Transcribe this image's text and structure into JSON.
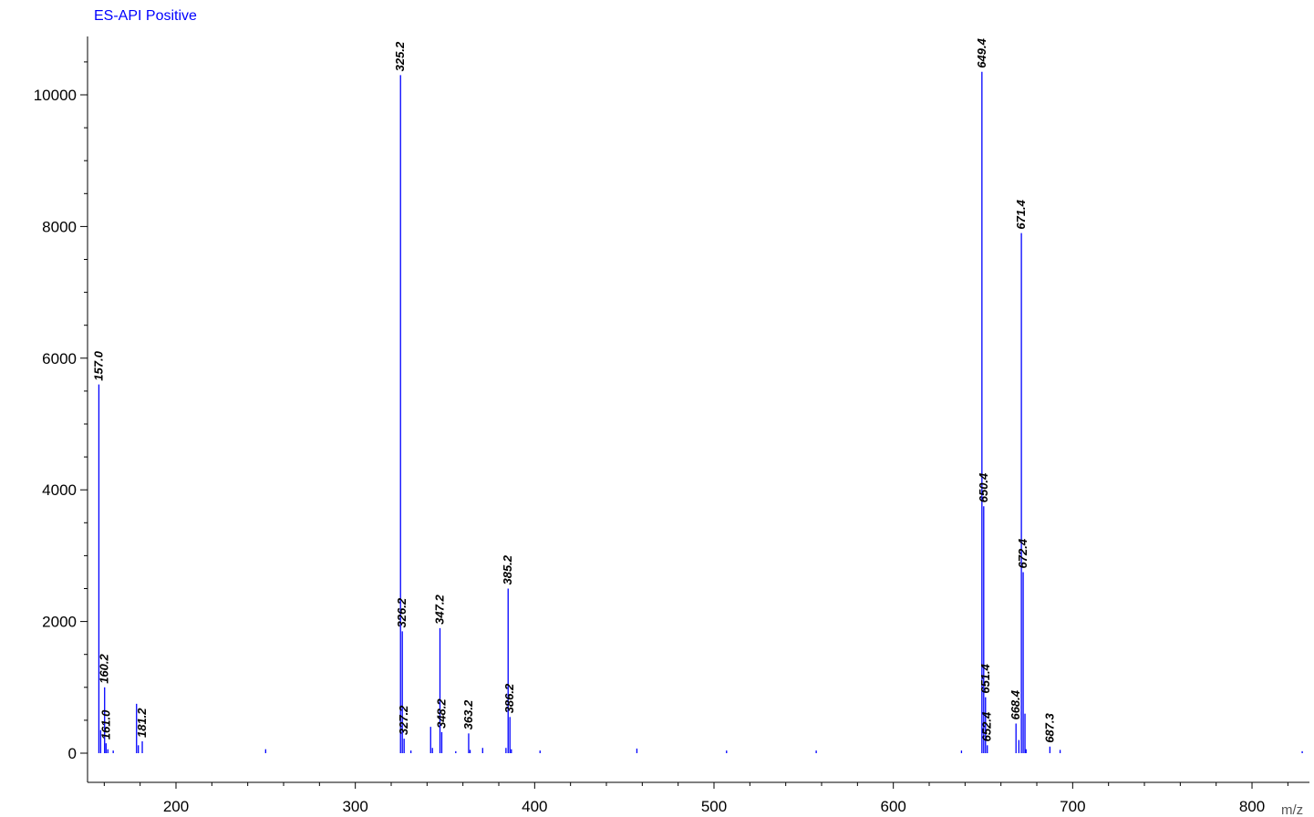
{
  "chart_data": {
    "type": "bar",
    "title": "ES-API Positive",
    "xlabel": "m/z",
    "ylabel": "",
    "xlim": [
      150,
      830
    ],
    "ylim": [
      -300,
      10900
    ],
    "x_ticks": [
      200,
      300,
      400,
      500,
      600,
      700,
      800
    ],
    "y_ticks": [
      0,
      2000,
      4000,
      6000,
      8000,
      10000
    ],
    "grid": false,
    "color": "#0000ff",
    "peaks": [
      {
        "x": 157.0,
        "y": 5600,
        "label": "157.0"
      },
      {
        "x": 158.0,
        "y": 350,
        "label": ""
      },
      {
        "x": 160.2,
        "y": 1000,
        "label": "160.2"
      },
      {
        "x": 161.0,
        "y": 150,
        "label": "161.0"
      },
      {
        "x": 162.0,
        "y": 60,
        "label": ""
      },
      {
        "x": 165.0,
        "y": 40,
        "label": ""
      },
      {
        "x": 178.0,
        "y": 750,
        "label": ""
      },
      {
        "x": 179.0,
        "y": 120,
        "label": ""
      },
      {
        "x": 181.2,
        "y": 180,
        "label": "181.2"
      },
      {
        "x": 250.0,
        "y": 60,
        "label": ""
      },
      {
        "x": 325.2,
        "y": 10300,
        "label": "325.2"
      },
      {
        "x": 326.2,
        "y": 1850,
        "label": "326.2"
      },
      {
        "x": 327.2,
        "y": 220,
        "label": "327.2"
      },
      {
        "x": 331.0,
        "y": 40,
        "label": ""
      },
      {
        "x": 342.0,
        "y": 400,
        "label": ""
      },
      {
        "x": 343.0,
        "y": 80,
        "label": ""
      },
      {
        "x": 347.2,
        "y": 1900,
        "label": "347.2"
      },
      {
        "x": 348.2,
        "y": 320,
        "label": "348.2"
      },
      {
        "x": 356.0,
        "y": 30,
        "label": ""
      },
      {
        "x": 363.2,
        "y": 300,
        "label": "363.2"
      },
      {
        "x": 364.0,
        "y": 50,
        "label": ""
      },
      {
        "x": 371.0,
        "y": 80,
        "label": ""
      },
      {
        "x": 384.0,
        "y": 80,
        "label": ""
      },
      {
        "x": 385.2,
        "y": 2500,
        "label": "385.2"
      },
      {
        "x": 386.2,
        "y": 550,
        "label": "386.2"
      },
      {
        "x": 387.0,
        "y": 60,
        "label": ""
      },
      {
        "x": 403.0,
        "y": 40,
        "label": ""
      },
      {
        "x": 457.0,
        "y": 70,
        "label": ""
      },
      {
        "x": 507.0,
        "y": 40,
        "label": ""
      },
      {
        "x": 557.0,
        "y": 40,
        "label": ""
      },
      {
        "x": 638.0,
        "y": 40,
        "label": ""
      },
      {
        "x": 649.4,
        "y": 10350,
        "label": "649.4"
      },
      {
        "x": 650.4,
        "y": 3750,
        "label": "650.4"
      },
      {
        "x": 651.4,
        "y": 850,
        "label": "651.4"
      },
      {
        "x": 652.4,
        "y": 120,
        "label": "652.4"
      },
      {
        "x": 668.4,
        "y": 450,
        "label": "668.4"
      },
      {
        "x": 670.0,
        "y": 200,
        "label": ""
      },
      {
        "x": 671.4,
        "y": 7900,
        "label": "671.4"
      },
      {
        "x": 672.4,
        "y": 2750,
        "label": "672.4"
      },
      {
        "x": 673.4,
        "y": 600,
        "label": ""
      },
      {
        "x": 674.0,
        "y": 60,
        "label": ""
      },
      {
        "x": 687.3,
        "y": 100,
        "label": "687.3"
      },
      {
        "x": 693.0,
        "y": 50,
        "label": ""
      },
      {
        "x": 828.0,
        "y": 30,
        "label": ""
      }
    ]
  }
}
